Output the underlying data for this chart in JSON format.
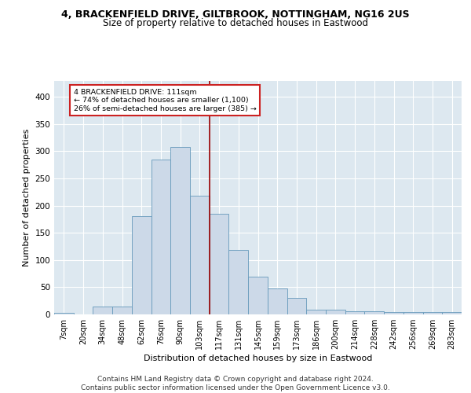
{
  "title_line1": "4, BRACKENFIELD DRIVE, GILTBROOK, NOTTINGHAM, NG16 2US",
  "title_line2": "Size of property relative to detached houses in Eastwood",
  "xlabel": "Distribution of detached houses by size in Eastwood",
  "ylabel": "Number of detached properties",
  "categories": [
    "7sqm",
    "20sqm",
    "34sqm",
    "48sqm",
    "62sqm",
    "76sqm",
    "90sqm",
    "103sqm",
    "117sqm",
    "131sqm",
    "145sqm",
    "159sqm",
    "173sqm",
    "186sqm",
    "200sqm",
    "214sqm",
    "228sqm",
    "242sqm",
    "256sqm",
    "269sqm",
    "283sqm"
  ],
  "values": [
    3,
    0,
    15,
    15,
    180,
    285,
    308,
    218,
    185,
    118,
    70,
    47,
    31,
    9,
    9,
    6,
    6,
    4,
    4,
    4,
    4
  ],
  "bar_color": "#ccd9e8",
  "bar_edge_color": "#6699bb",
  "vline_color": "#990000",
  "annotation_text": "4 BRACKENFIELD DRIVE: 111sqm\n← 74% of detached houses are smaller (1,100)\n26% of semi-detached houses are larger (385) →",
  "annotation_box_color": "#ffffff",
  "annotation_box_edge": "#cc2222",
  "footer_line1": "Contains HM Land Registry data © Crown copyright and database right 2024.",
  "footer_line2": "Contains public sector information licensed under the Open Government Licence v3.0.",
  "ylim": [
    0,
    430
  ],
  "yticks": [
    0,
    50,
    100,
    150,
    200,
    250,
    300,
    350,
    400
  ],
  "background_color": "#dde8f0",
  "grid_color": "#ffffff",
  "title_fontsize": 9,
  "subtitle_fontsize": 8.5,
  "axis_label_fontsize": 8,
  "tick_fontsize": 7,
  "footer_fontsize": 6.5
}
